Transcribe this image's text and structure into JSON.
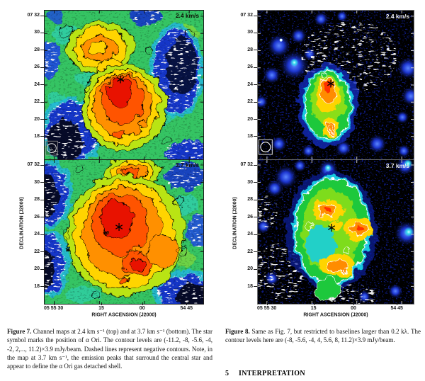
{
  "document": {
    "section_number": "5",
    "section_title": "INTERPRETATION"
  },
  "axes": {
    "y_label": "DECLINATION (J2000)",
    "x_label": "RIGHT ASCENSION (J2000)",
    "dec_ticks": [
      "07 32",
      "30",
      "28",
      "26",
      "24",
      "22",
      "20",
      "18"
    ],
    "ra_ticks": [
      "05 55 30",
      "15",
      "00",
      "54 45"
    ]
  },
  "figure7": {
    "caption_label": "Figure 7.",
    "caption_text": "Channel maps at 2.4 km s⁻¹ (top) and at 3.7 km s⁻¹ (bottom). The star symbol marks the position of α Ori. The contour levels are (-11.2, -8, -5.6, -4, -2, 2,..., 11.2)×3.9 mJy/beam. Dashed lines represent negative contours. Note, in the map at 3.7 km s⁻¹, the emission peaks that surround the central star and appear to define the α Ori gas detached shell.",
    "top_panel": {
      "velocity_label": "2.4 km/s"
    },
    "bottom_panel": {
      "velocity_label": "3.7 km/s"
    }
  },
  "figure8": {
    "caption_label": "Figure 8.",
    "caption_text": "Same as Fig. 7, but restricted to baselines larger than 0.2 kλ. The contour levels here are (-8, -5.6, -4, 4, 5.6, 8, 11.2)×3.9 mJy/beam.",
    "top_panel": {
      "velocity_label": "2.4 km/s"
    },
    "bottom_panel": {
      "velocity_label": "3.7 km/s"
    }
  },
  "icons": {
    "star_symbol": "✶",
    "beam_icon": "○"
  },
  "colors": {
    "emission_red": "#e81200",
    "emission_orange": "#ff8c00",
    "emission_yellow": "#ffd400",
    "map_green": "#35c463",
    "negative_blue": "#1536c9",
    "deep_blue": "#0b1e8c",
    "map_black": "#000000",
    "contour_black": "#000000",
    "contour_white": "#ffffff"
  }
}
